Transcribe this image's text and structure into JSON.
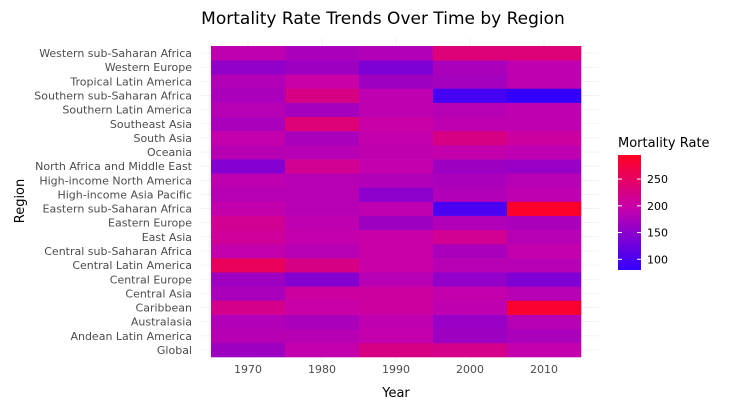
{
  "chart_data": {
    "type": "heatmap",
    "title": "Mortality Rate Trends Over Time by Region",
    "xlabel": "Year",
    "ylabel": "Region",
    "x": [
      "1970",
      "1980",
      "1990",
      "2000",
      "2010"
    ],
    "y": [
      "Global",
      "Andean Latin America",
      "Australasia",
      "Caribbean",
      "Central Asia",
      "Central Europe",
      "Central Latin America",
      "Central sub-Saharan Africa",
      "East Asia",
      "Eastern Europe",
      "Eastern sub-Saharan Africa",
      "High-income Asia Pacific",
      "High-income North America",
      "North Africa and Middle East",
      "Oceania",
      "South Asia",
      "Southeast Asia",
      "Southern Latin America",
      "Southern sub-Saharan Africa",
      "Tropical Latin America",
      "Western Europe",
      "Western sub-Saharan Africa"
    ],
    "values": [
      [
        165,
        195,
        225,
        220,
        195
      ],
      [
        185,
        185,
        195,
        165,
        175
      ],
      [
        180,
        175,
        190,
        160,
        185
      ],
      [
        220,
        200,
        205,
        190,
        285
      ],
      [
        175,
        205,
        205,
        195,
        185
      ],
      [
        165,
        145,
        185,
        155,
        140
      ],
      [
        255,
        225,
        200,
        185,
        185
      ],
      [
        195,
        185,
        200,
        175,
        195
      ],
      [
        210,
        195,
        200,
        215,
        185
      ],
      [
        215,
        190,
        165,
        180,
        175
      ],
      [
        195,
        185,
        190,
        100,
        290
      ],
      [
        185,
        185,
        150,
        180,
        190
      ],
      [
        190,
        185,
        180,
        175,
        185
      ],
      [
        145,
        215,
        195,
        165,
        160
      ],
      [
        185,
        185,
        190,
        195,
        190
      ],
      [
        195,
        175,
        195,
        225,
        205
      ],
      [
        175,
        235,
        200,
        190,
        190
      ],
      [
        185,
        170,
        190,
        185,
        190
      ],
      [
        175,
        225,
        190,
        95,
        80
      ],
      [
        180,
        200,
        165,
        170,
        190
      ],
      [
        155,
        165,
        140,
        175,
        190
      ],
      [
        190,
        175,
        180,
        235,
        235
      ]
    ],
    "colorbar": {
      "title": "Mortality Rate",
      "ticks": [
        100,
        150,
        200,
        250
      ],
      "range": [
        80,
        295
      ],
      "low_color": "#3300ff",
      "high_color": "#ff0022"
    },
    "legend_position": "right",
    "grid": true
  }
}
